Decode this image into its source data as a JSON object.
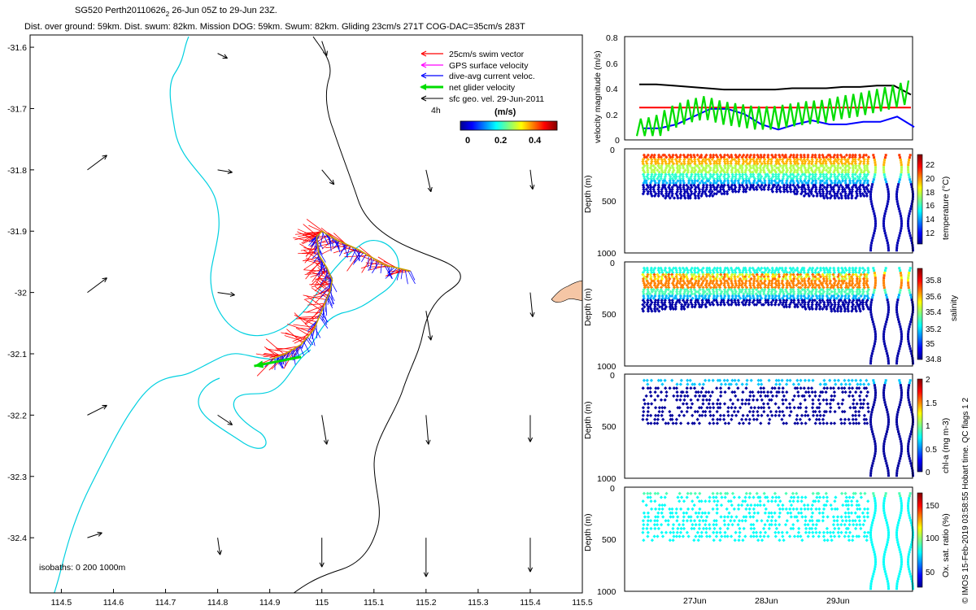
{
  "header": {
    "title_main": "SG520 Perth20110626",
    "title_sub": "2",
    "title_tail": " 26-Jun 05Z to 29-Jun 23Z.",
    "subtitle": "Dist. over ground: 59km. Dist. swum: 82km. Mission DOG: 59km. Swum: 82km. Gliding 23cm/s 271T COG-DAC=35cm/s 283T"
  },
  "credit": "© IMOS 15-Feb-2019 03:58:55 Hobart time. QC flags 1  2",
  "colors": {
    "swim": "#ff0000",
    "gps": "#ff00ff",
    "dac": "#0000ff",
    "net": "#00dd00",
    "sfc": "#000000",
    "isobath": "#00d0e0",
    "land": "#f5c6a5"
  },
  "map": {
    "xticks": [
      "114.5",
      "114.6",
      "114.7",
      "114.8",
      "114.9",
      "115",
      "115.1",
      "115.2",
      "115.3",
      "115.4",
      "115.5"
    ],
    "yticks": [
      "-31.6",
      "-31.7",
      "-31.8",
      "-31.9",
      "-32",
      "-32.1",
      "-32.2",
      "-32.3",
      "-32.4"
    ],
    "legend": [
      {
        "label": "25cm/s swim vector",
        "color_key": "swim"
      },
      {
        "label": "GPS surface velocity",
        "color_key": "gps"
      },
      {
        "label": "dive-avg current veloc.",
        "color_key": "dac"
      },
      {
        "label": "net glider velocity",
        "color_key": "net"
      },
      {
        "label": "sfc geo. vel. 29-Jun-2011",
        "color_key": "sfc"
      }
    ],
    "scale_time": "4h",
    "colorbar_label": "(m/s)",
    "colorbar_ticks": [
      "0",
      "0.2",
      "0.4"
    ],
    "isobaths_label": "isobaths: 0   200  1000m"
  },
  "panels": {
    "velocity": {
      "ylabel": "velocity magnitude (m/s)",
      "yticks": [
        "0",
        "0.2",
        "0.4",
        "0.6",
        "0.8"
      ]
    },
    "temperature": {
      "ylabel": "Depth (m)",
      "yticks": [
        "0",
        "500",
        "1000"
      ],
      "cbar_label": "temperature (°C)",
      "cbar_ticks": [
        "12",
        "14",
        "16",
        "18",
        "20",
        "22"
      ]
    },
    "salinity": {
      "ylabel": "Depth (m)",
      "yticks": [
        "0",
        "500",
        "1000"
      ],
      "cbar_label": "salinity",
      "cbar_ticks": [
        "34.8",
        "35",
        "35.2",
        "35.4",
        "35.6",
        "35.8"
      ]
    },
    "chla": {
      "ylabel": "Depth (m)",
      "yticks": [
        "0",
        "500",
        "1000"
      ],
      "cbar_label": "chl-a (mg m-3)",
      "cbar_ticks": [
        "0",
        "0.5",
        "1",
        "1.5",
        "2"
      ]
    },
    "oxygen": {
      "ylabel": "Depth (m)",
      "yticks": [
        "0",
        "500",
        "1000"
      ],
      "cbar_label": "Ox. sat. ratio (%)",
      "cbar_ticks": [
        "50",
        "100",
        "150"
      ],
      "xticks": [
        "27Jun",
        "28Jun",
        "29Jun"
      ]
    }
  },
  "chart_data": [
    {
      "type": "map",
      "xlim": [
        114.44,
        115.5
      ],
      "ylim": [
        -32.49,
        -31.58
      ],
      "track": [
        [
          115.17,
          -31.965
        ],
        [
          115.12,
          -31.955
        ],
        [
          115.07,
          -31.93
        ],
        [
          115.03,
          -31.915
        ],
        [
          115.0,
          -31.9
        ],
        [
          114.99,
          -31.91
        ],
        [
          114.995,
          -31.94
        ],
        [
          115.01,
          -31.96
        ],
        [
          115.02,
          -31.98
        ],
        [
          115.015,
          -32.0
        ],
        [
          115.0,
          -32.03
        ],
        [
          114.985,
          -32.06
        ],
        [
          114.96,
          -32.085
        ],
        [
          114.93,
          -32.1
        ],
        [
          114.905,
          -32.108
        ]
      ],
      "net_velocity": {
        "from": [
          114.96,
          -32.105
        ],
        "to": [
          114.87,
          -32.12
        ]
      },
      "sfc_vectors": [
        [
          114.55,
          -31.8,
          0.04,
          0.03
        ],
        [
          114.55,
          -32.0,
          0.04,
          0.03
        ],
        [
          114.55,
          -32.2,
          0.04,
          0.02
        ],
        [
          114.55,
          -32.4,
          0.03,
          0.01
        ],
        [
          114.8,
          -31.61,
          0.02,
          -0.01
        ],
        [
          114.8,
          -31.8,
          0.03,
          -0.005
        ],
        [
          114.8,
          -32.0,
          0.035,
          -0.005
        ],
        [
          114.8,
          -32.2,
          0.03,
          -0.02
        ],
        [
          114.8,
          -32.4,
          0.005,
          -0.035
        ],
        [
          115.0,
          -31.59,
          0.01,
          -0.03
        ],
        [
          115.0,
          -31.8,
          0.025,
          -0.03
        ],
        [
          115.0,
          -32.2,
          0.01,
          -0.06
        ],
        [
          115.0,
          -32.4,
          0.0,
          -0.06
        ],
        [
          115.2,
          -31.8,
          0.01,
          -0.045
        ],
        [
          115.2,
          -32.03,
          0.01,
          -0.06
        ],
        [
          115.2,
          -32.2,
          0.005,
          -0.06
        ],
        [
          115.2,
          -32.4,
          0.0,
          -0.08
        ],
        [
          115.4,
          -31.8,
          0.005,
          -0.04
        ],
        [
          115.4,
          -32.0,
          0.005,
          -0.05
        ],
        [
          115.4,
          -32.2,
          0.0,
          -0.055
        ],
        [
          115.4,
          -32.4,
          0.0,
          -0.07
        ]
      ]
    },
    {
      "type": "line",
      "ylabel": "velocity magnitude (m/s)",
      "ylim": [
        0,
        0.8
      ],
      "x_range_days": [
        "26-Jun",
        "30-Jun"
      ],
      "series": [
        {
          "color_key": "sfc",
          "values": [
            0.43,
            0.43,
            0.42,
            0.41,
            0.4,
            0.39,
            0.39,
            0.39,
            0.39,
            0.4,
            0.4,
            0.4,
            0.41,
            0.41,
            0.42,
            0.42,
            0.35
          ]
        },
        {
          "color_key": "swim",
          "values": [
            0.25,
            0.25,
            0.25,
            0.25,
            0.25,
            0.25,
            0.25,
            0.25,
            0.25,
            0.25,
            0.25,
            0.25,
            0.25,
            0.25,
            0.25,
            0.25,
            0.25
          ]
        },
        {
          "color_key": "dac",
          "values": [
            0.09,
            0.09,
            0.12,
            0.18,
            0.24,
            0.24,
            0.2,
            0.12,
            0.08,
            0.12,
            0.15,
            0.12,
            0.12,
            0.14,
            0.14,
            0.18,
            0.1
          ]
        },
        {
          "color_key": "net",
          "values": [
            0.1,
            0.12,
            0.2,
            0.25,
            0.28,
            0.24,
            0.22,
            0.2,
            0.2,
            0.22,
            0.24,
            0.25,
            0.28,
            0.3,
            0.33,
            0.36,
            0.4
          ]
        }
      ]
    }
  ]
}
